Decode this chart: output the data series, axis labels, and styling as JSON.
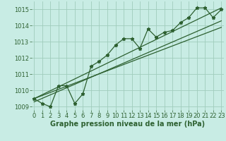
{
  "xlabel": "Graphe pression niveau de la mer (hPa)",
  "bg_color": "#c8ece4",
  "grid_color": "#a0ccbc",
  "line_color": "#2d6030",
  "x": [
    0,
    1,
    2,
    3,
    4,
    5,
    6,
    7,
    8,
    9,
    10,
    11,
    12,
    13,
    14,
    15,
    16,
    17,
    18,
    19,
    20,
    21,
    22,
    23
  ],
  "y_main": [
    1009.5,
    1009.2,
    1009.0,
    1010.3,
    1010.3,
    1009.2,
    1009.8,
    1011.5,
    1011.8,
    1012.2,
    1012.8,
    1013.2,
    1013.2,
    1012.6,
    1013.8,
    1013.3,
    1013.6,
    1013.7,
    1014.2,
    1014.5,
    1015.1,
    1015.1,
    1014.5,
    1015.0
  ],
  "trend1_x": [
    0,
    23
  ],
  "trend1_y": [
    1009.5,
    1013.9
  ],
  "trend2_x": [
    0,
    23
  ],
  "trend2_y": [
    1009.5,
    1015.1
  ],
  "trend3_x": [
    0,
    23
  ],
  "trend3_y": [
    1009.3,
    1014.3
  ],
  "ylim": [
    1008.8,
    1015.5
  ],
  "yticks": [
    1009,
    1010,
    1011,
    1012,
    1013,
    1014,
    1015
  ],
  "xticks": [
    0,
    1,
    2,
    3,
    4,
    5,
    6,
    7,
    8,
    9,
    10,
    11,
    12,
    13,
    14,
    15,
    16,
    17,
    18,
    19,
    20,
    21,
    22,
    23
  ],
  "xlabel_fontsize": 7.0,
  "tick_fontsize": 6.0,
  "label_color": "#2d6030"
}
